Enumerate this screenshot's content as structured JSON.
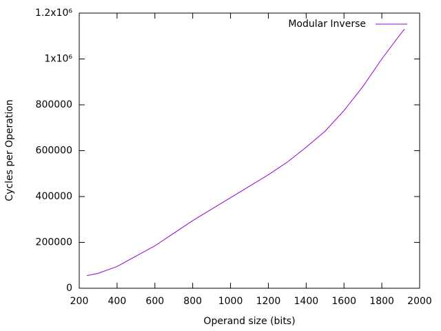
{
  "chart_data": {
    "type": "line",
    "x_label": "Operand size (bits)",
    "y_label": "Cycles per Operation",
    "x": [
      240,
      300,
      400,
      500,
      600,
      700,
      800,
      900,
      1000,
      1100,
      1200,
      1300,
      1400,
      1500,
      1600,
      1700,
      1800,
      1900,
      1920
    ],
    "series": [
      {
        "name": "Modular Inverse",
        "color": "#9400d3",
        "values": [
          55000,
          65000,
          95000,
          140000,
          185000,
          240000,
          295000,
          345000,
          395000,
          445000,
          495000,
          550000,
          615000,
          685000,
          775000,
          880000,
          1000000,
          1110000,
          1130000
        ]
      }
    ],
    "xlim": [
      200,
      2000
    ],
    "xticks": [
      200,
      400,
      600,
      800,
      1000,
      1200,
      1400,
      1600,
      1800,
      2000
    ],
    "ylim": [
      0,
      1200000
    ],
    "yticks": [
      0,
      200000,
      400000,
      600000,
      800000,
      {
        "value": 1000000,
        "label": "1x10⁶"
      },
      {
        "value": 1200000,
        "label": "1.2x10⁶"
      }
    ],
    "legend": "top-right"
  }
}
